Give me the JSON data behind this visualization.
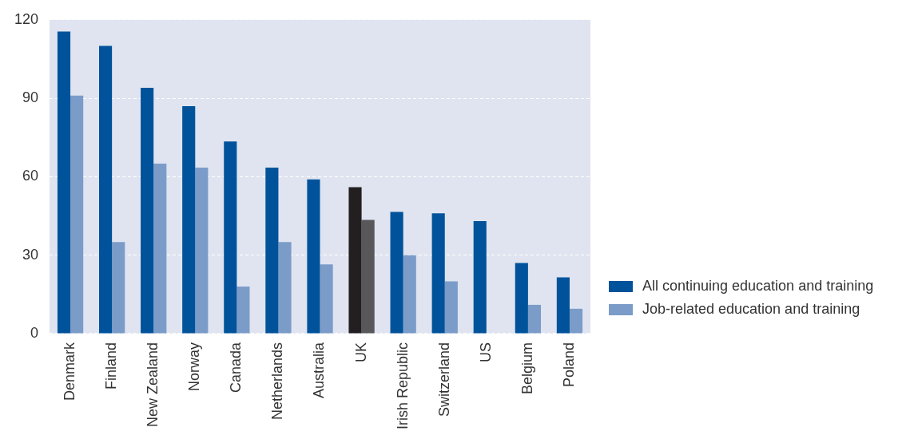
{
  "chart_data": {
    "type": "bar",
    "categories": [
      "Denmark",
      "Finland",
      "New Zealand",
      "Norway",
      "Canada",
      "Netherlands",
      "Australia",
      "UK",
      "Irish Republic",
      "Switzerland",
      "US",
      "Belgium",
      "Poland"
    ],
    "series": [
      {
        "name": "All continuing education and training",
        "color": "#00539b",
        "colors": [
          "#00539b",
          "#00539b",
          "#00539b",
          "#00539b",
          "#00539b",
          "#00539b",
          "#00539b",
          "#231f20",
          "#00539b",
          "#00539b",
          "#00539b",
          "#00539b",
          "#00539b"
        ],
        "values": [
          115.5,
          110,
          94,
          87,
          73.5,
          63.5,
          59,
          56,
          46.5,
          46,
          43,
          27,
          21.5
        ]
      },
      {
        "name": "Job-related education and training",
        "color": "#7b9cc9",
        "colors": [
          "#7b9cc9",
          "#7b9cc9",
          "#7b9cc9",
          "#7b9cc9",
          "#7b9cc9",
          "#7b9cc9",
          "#7b9cc9",
          "#58585a",
          "#7b9cc9",
          "#7b9cc9",
          null,
          "#7b9cc9",
          "#7b9cc9"
        ],
        "values": [
          91,
          35,
          65,
          63.5,
          18,
          35,
          26.5,
          43.5,
          30,
          20,
          null,
          11,
          9.5
        ]
      }
    ],
    "ylim": [
      0,
      120
    ],
    "yticks": [
      0,
      30,
      60,
      90,
      120
    ],
    "grid": "y",
    "legend": "bottom right"
  }
}
